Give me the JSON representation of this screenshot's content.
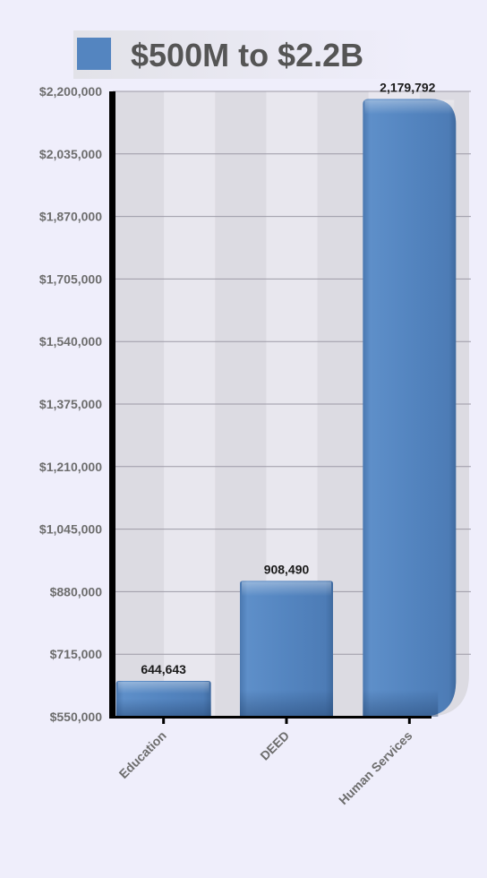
{
  "chart_data": {
    "type": "bar",
    "title": "",
    "xlabel": "",
    "ylabel": "",
    "categories": [
      "Education",
      "DEED",
      "Human Services"
    ],
    "series": [
      {
        "name": "$500M to $2.2B",
        "values": [
          644643,
          908490,
          2179792
        ],
        "value_labels": [
          "644,643",
          "908,490",
          "2,179,792"
        ]
      }
    ],
    "ylim": [
      550000,
      2200000
    ],
    "yticks": [
      550000,
      715000,
      880000,
      1045000,
      1210000,
      1375000,
      1540000,
      1705000,
      1870000,
      2035000,
      2200000
    ],
    "ytick_labels": [
      "$550,000",
      "$715,000",
      "$880,000",
      "$1,045,000",
      "$1,210,000",
      "$1,375,000",
      "$1,540,000",
      "$1,705,000",
      "$1,870,000",
      "$2,035,000",
      "$2,200,000"
    ],
    "grid": true,
    "legend_position": "top",
    "colors": {
      "bar": "#5485c0",
      "bar_dark": "#3d6a9f",
      "plot_band_dark": "#dcdbe2",
      "plot_band_light": "#e8e7ee",
      "axis": "#000000",
      "background": "#efeefb"
    }
  }
}
